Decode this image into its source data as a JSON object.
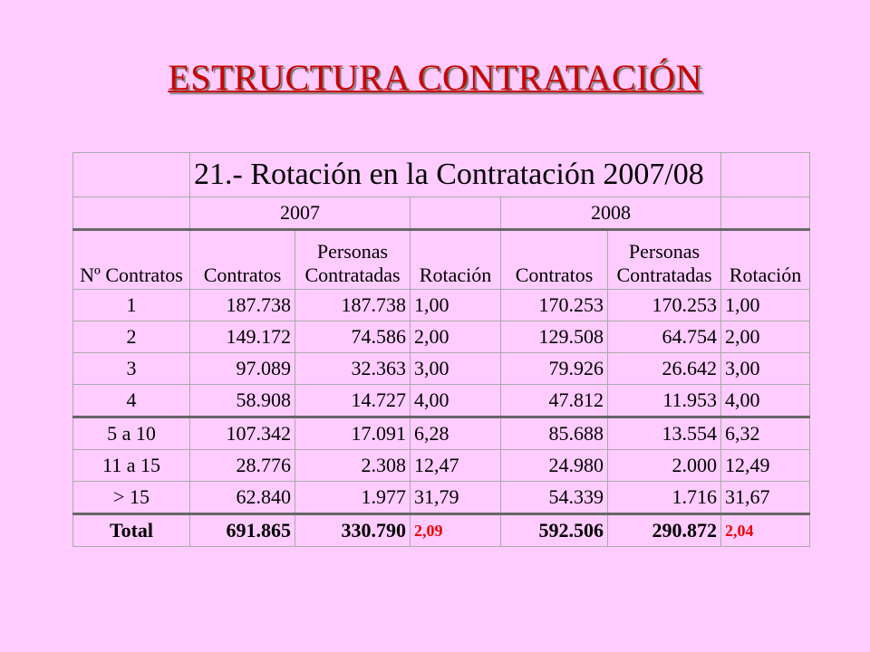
{
  "header": {
    "title": "ESTRUCTURA CONTRATACIÓN"
  },
  "table": {
    "title": "21.- Rotación en la Contratación 2007/08",
    "years": [
      "2007",
      "2008"
    ],
    "columns": [
      "Nº Contratos",
      "Contratos",
      "Personas Contratadas",
      "Rotación",
      "Contratos",
      "Personas Contratadas",
      "Rotación"
    ],
    "rows": [
      [
        "1",
        "187.738",
        "187.738",
        "1,00",
        "170.253",
        "170.253",
        "1,00"
      ],
      [
        "2",
        "149.172",
        "74.586",
        "2,00",
        "129.508",
        "64.754",
        "2,00"
      ],
      [
        "3",
        "97.089",
        "32.363",
        "3,00",
        "79.926",
        "26.642",
        "3,00"
      ],
      [
        "4",
        "58.908",
        "14.727",
        "4,00",
        "47.812",
        "11.953",
        "4,00"
      ],
      [
        "5 a 10",
        "107.342",
        "17.091",
        "6,28",
        "85.688",
        "13.554",
        "6,32"
      ],
      [
        "11 a 15",
        "28.776",
        "2.308",
        "12,47",
        "24.980",
        "2.000",
        "12,49"
      ],
      [
        "> 15",
        "62.840",
        "1.977",
        "31,79",
        "54.339",
        "1.716",
        "31,67"
      ]
    ],
    "total": [
      "Total",
      "691.865",
      "330.790",
      "2,09",
      "592.506",
      "290.872",
      "2,04"
    ]
  }
}
